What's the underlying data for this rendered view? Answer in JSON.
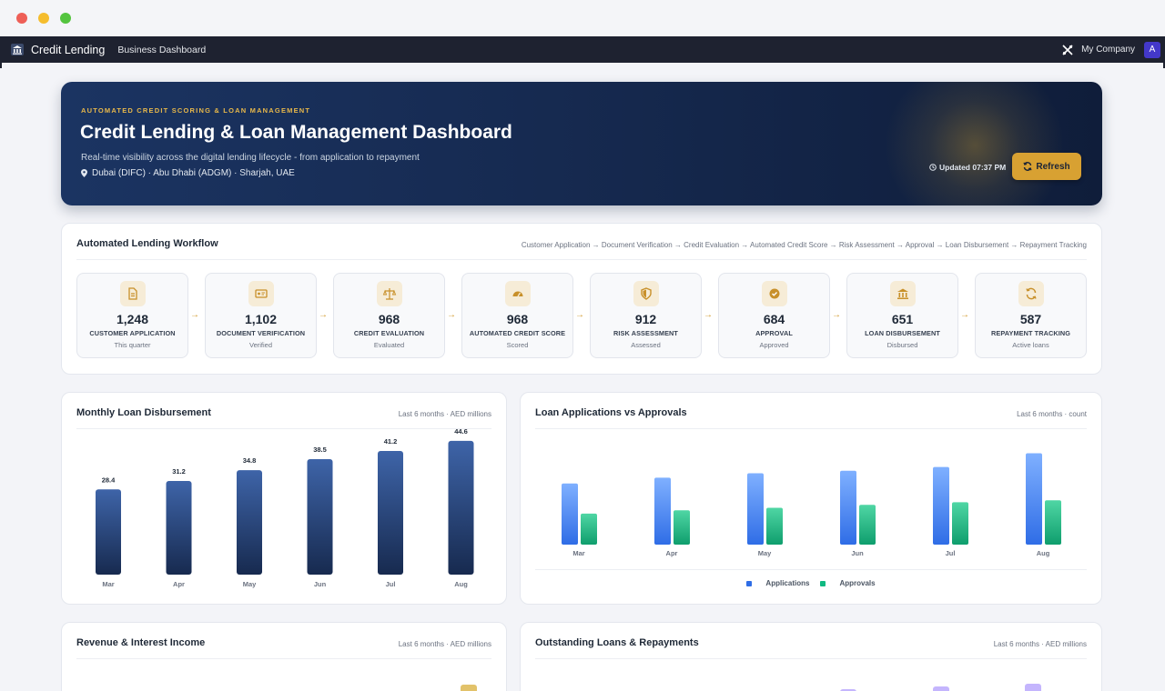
{
  "nav": {
    "brand": "Credit Lending",
    "subtitle": "Business Dashboard",
    "company": "My Company",
    "avatar": "A"
  },
  "hero": {
    "kicker": "AUTOMATED CREDIT SCORING & LOAN MANAGEMENT",
    "title": "Credit Lending & Loan Management Dashboard",
    "description": "Real-time visibility across the digital lending lifecycle - from application to repayment",
    "locations": "Dubai (DIFC) · Abu Dhabi (ADGM) · Sharjah, UAE",
    "updated": "Updated 07:37 PM",
    "refresh_label": "Refresh"
  },
  "workflow": {
    "title": "Automated Lending Workflow",
    "flow": "Customer Application → Document Verification → Credit Evaluation → Automated Credit Score → Risk Assessment → Approval → Loan Disbursement → Repayment Tracking",
    "steps": [
      {
        "value": "1,248",
        "label": "CUSTOMER APPLICATION",
        "stat": "This quarter",
        "icon": "document-icon"
      },
      {
        "value": "1,102",
        "label": "DOCUMENT VERIFICATION",
        "stat": "Verified",
        "icon": "id-card-icon"
      },
      {
        "value": "968",
        "label": "CREDIT EVALUATION",
        "stat": "Evaluated",
        "icon": "scale-icon"
      },
      {
        "value": "968",
        "label": "AUTOMATED CREDIT SCORE",
        "stat": "Scored",
        "icon": "gauge-icon"
      },
      {
        "value": "912",
        "label": "RISK ASSESSMENT",
        "stat": "Assessed",
        "icon": "shield-icon"
      },
      {
        "value": "684",
        "label": "APPROVAL",
        "stat": "Approved",
        "icon": "check-circle-icon"
      },
      {
        "value": "651",
        "label": "LOAN DISBURSEMENT",
        "stat": "Disbursed",
        "icon": "bank-icon"
      },
      {
        "value": "587",
        "label": "REPAYMENT TRACKING",
        "stat": "Active loans",
        "icon": "refresh-icon"
      }
    ]
  },
  "colors": {
    "accent": "#d8a132",
    "navy": "#1b3462",
    "applications": "#3b82f6",
    "approvals": "#10b981"
  },
  "chart_data": [
    {
      "type": "bar",
      "title": "Monthly Loan Disbursement",
      "meta": "Last 6 months · AED millions",
      "categories": [
        "Mar",
        "Apr",
        "May",
        "Jun",
        "Jul",
        "Aug"
      ],
      "values": [
        28.4,
        31.2,
        34.8,
        38.5,
        41.2,
        44.6
      ],
      "value_labels": [
        "28.4",
        "31.2",
        "34.8",
        "38.5",
        "41.2",
        "44.6"
      ],
      "ylim": [
        0,
        50
      ]
    },
    {
      "type": "bar",
      "title": "Loan Applications vs Approvals",
      "meta": "Last 6 months · count",
      "categories": [
        "Mar",
        "Apr",
        "May",
        "Jun",
        "Jul",
        "Aug"
      ],
      "series": [
        {
          "name": "Applications",
          "values": [
            178,
            195,
            208,
            215,
            226,
            266
          ]
        },
        {
          "name": "Approvals",
          "values": [
            96,
            106,
            114,
            123,
            131,
            137
          ]
        }
      ],
      "ylim": [
        0,
        300
      ],
      "legend": "bottom"
    },
    {
      "type": "bar",
      "title": "Revenue & Interest Income",
      "meta": "Last 6 months · AED millions"
    },
    {
      "type": "bar",
      "title": "Outstanding Loans & Repayments",
      "meta": "Last 6 months · AED millions"
    }
  ]
}
